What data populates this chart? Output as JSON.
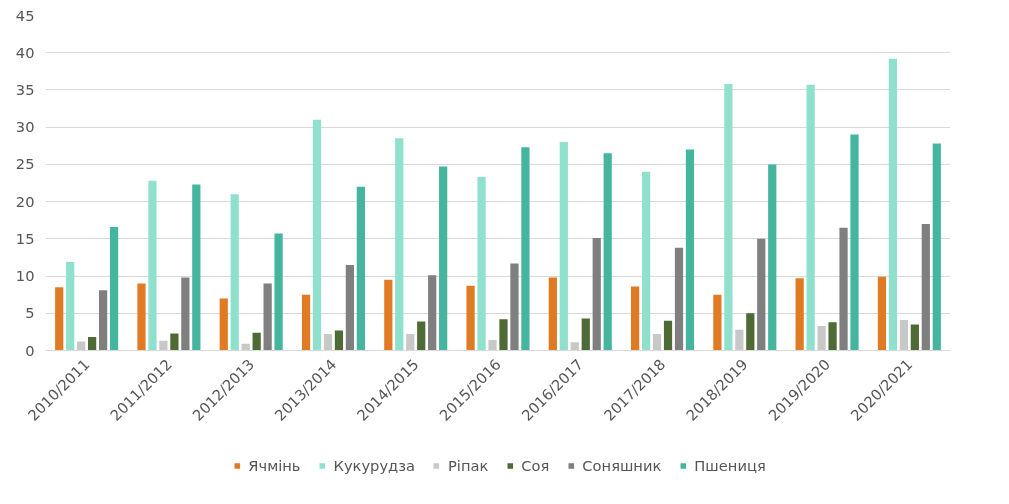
{
  "chart_data": {
    "type": "bar",
    "categories": [
      "2010/2011",
      "2011/2012",
      "2012/2013",
      "2013/2014",
      "2014/2015",
      "2015/2016",
      "2016/2017",
      "2017/2018",
      "2018/2019",
      "2019/2020",
      "2020/2021"
    ],
    "series": [
      {
        "name": "Ячмінь",
        "color": "#e07b24",
        "values": [
          8.5,
          9,
          7,
          7.5,
          9.5,
          8.7,
          9.8,
          8.6,
          7.5,
          9.7,
          9.9
        ]
      },
      {
        "name": "Кукурудза",
        "color": "#8fe0cc",
        "values": [
          11.9,
          22.8,
          21,
          31,
          28.5,
          23.3,
          28,
          24,
          35.8,
          35.7,
          39.2
        ]
      },
      {
        "name": "Ріпак",
        "color": "#c8c8c8",
        "values": [
          1.2,
          1.3,
          0.9,
          2.2,
          2.2,
          1.4,
          1.1,
          2.2,
          2.8,
          3.3,
          4.1
        ]
      },
      {
        "name": "Соя",
        "color": "#4f6b35",
        "values": [
          1.8,
          2.3,
          2.4,
          2.7,
          3.9,
          4.2,
          4.3,
          4.0,
          5.0,
          3.8,
          3.5
        ]
      },
      {
        "name": "Соняшник",
        "color": "#7f7f7f",
        "values": [
          8.1,
          9.8,
          9,
          11.5,
          10.1,
          11.7,
          15.1,
          13.8,
          15,
          16.5,
          17
        ]
      },
      {
        "name": "Пшениця",
        "color": "#45b5a0",
        "values": [
          16.6,
          22.3,
          15.7,
          22,
          24.7,
          27.3,
          26.5,
          27,
          25,
          29,
          27.8
        ]
      }
    ],
    "ylim": [
      0,
      45
    ],
    "yticks": [
      0,
      5,
      10,
      15,
      20,
      25,
      30,
      35,
      40,
      45
    ],
    "grid": "y",
    "legend": "bottom"
  }
}
